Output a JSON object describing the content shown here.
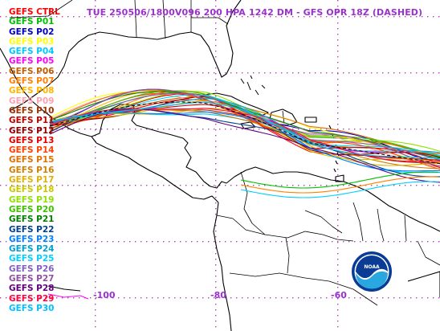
{
  "title": "TUE 250506/1800V096  200 HPA 1242 DM - GFS OPR 18Z (DASHED)",
  "title_color": "#9b30d0",
  "background": "#ffffff",
  "legend": [
    {
      "label": "GEFS CTRL",
      "color": "#ff0000"
    },
    {
      "label": "GEFS P01",
      "color": "#00c000"
    },
    {
      "label": "GEFS P02",
      "color": "#0000c8"
    },
    {
      "label": "GEFS P03",
      "color": "#ffff00"
    },
    {
      "label": "GEFS P04",
      "color": "#00c8ff"
    },
    {
      "label": "GEFS P05",
      "color": "#ff00ff"
    },
    {
      "label": "GEFS P06",
      "color": "#c06000"
    },
    {
      "label": "GEFS P07",
      "color": "#ff8000"
    },
    {
      "label": "GEFS P08",
      "color": "#ffb400"
    },
    {
      "label": "GEFS P09",
      "color": "#ffa0b4"
    },
    {
      "label": "GEFS P10",
      "color": "#a03000"
    },
    {
      "label": "GEFS P11",
      "color": "#c00000"
    },
    {
      "label": "GEFS P12",
      "color": "#900000"
    },
    {
      "label": "GEFS P13",
      "color": "#e00000"
    },
    {
      "label": "GEFS P14",
      "color": "#ff4000"
    },
    {
      "label": "GEFS P15",
      "color": "#e07000"
    },
    {
      "label": "GEFS P16",
      "color": "#d08000"
    },
    {
      "label": "GEFS P17",
      "color": "#e0b000"
    },
    {
      "label": "GEFS P18",
      "color": "#c8c800"
    },
    {
      "label": "GEFS P19",
      "color": "#90e000"
    },
    {
      "label": "GEFS P20",
      "color": "#40c000"
    },
    {
      "label": "GEFS P21",
      "color": "#008000"
    },
    {
      "label": "GEFS P22",
      "color": "#004090"
    },
    {
      "label": "GEFS P23",
      "color": "#0080ff"
    },
    {
      "label": "GEFS P24",
      "color": "#00a0d0"
    },
    {
      "label": "GEFS P25",
      "color": "#00d0ff"
    },
    {
      "label": "GEFS P26",
      "color": "#8060c0"
    },
    {
      "label": "GEFS P27",
      "color": "#9050a0"
    },
    {
      "label": "GEFS P28",
      "color": "#600080"
    },
    {
      "label": "GEFS P29",
      "color": "#ff0040"
    },
    {
      "label": "GEFS P30",
      "color": "#00c0ff"
    }
  ],
  "longitude_labels": [
    "-100",
    "-80",
    "-60"
  ],
  "graticule_color": "#b040b0",
  "coast_color": "#000000",
  "logo": {
    "name": "NOAA",
    "text": "NOAA"
  }
}
